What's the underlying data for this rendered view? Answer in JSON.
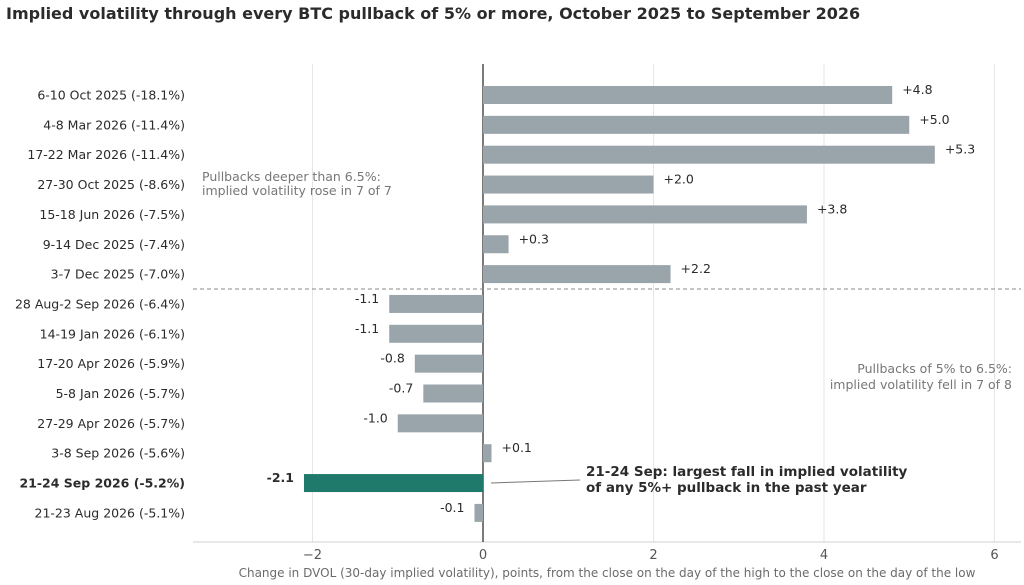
{
  "chart_data": {
    "type": "bar",
    "orientation": "horizontal",
    "title": "Implied volatility through every BTC pullback of 5% or more, October 2025 to September 2026",
    "xlabel": "Change in DVOL (30-day implied volatility), points, from the close on the day of the high to the close on the day of the low",
    "xlim": [
      -3.4,
      6.3
    ],
    "xticks": [
      -2,
      0,
      2,
      4,
      6
    ],
    "xtick_labels": [
      "−2",
      "0",
      "2",
      "4",
      "6"
    ],
    "grid": "vertical",
    "categories": [
      "6-10 Oct 2025  (-18.1%)",
      "4-8 Mar 2026  (-11.4%)",
      "17-22 Mar 2026  (-11.4%)",
      "27-30 Oct 2025  (-8.6%)",
      "15-18 Jun 2026  (-7.5%)",
      "9-14 Dec 2025  (-7.4%)",
      "3-7 Dec 2025  (-7.0%)",
      "28 Aug-2 Sep 2026  (-6.4%)",
      "14-19 Jan 2026  (-6.1%)",
      "17-20 Apr 2026  (-5.9%)",
      "5-8 Jan 2026  (-5.7%)",
      "27-29 Apr 2026  (-5.7%)",
      "3-8 Sep 2026  (-5.6%)",
      "21-24 Sep 2026  (-5.2%)",
      "21-23 Aug 2026  (-5.1%)"
    ],
    "values": [
      4.8,
      5.0,
      5.3,
      2.0,
      3.8,
      0.3,
      2.2,
      -1.1,
      -1.1,
      -0.8,
      -0.7,
      -1.0,
      0.1,
      -2.1,
      -0.1
    ],
    "value_labels": [
      "+4.8",
      "+5.0",
      "+5.3",
      "+2.0",
      "+3.8",
      "+0.3",
      "+2.2",
      "-1.1",
      "-1.1",
      "-0.8",
      "-0.7",
      "-1.0",
      "+0.1",
      "-2.1",
      "-0.1"
    ],
    "highlight_index": 13,
    "colors": {
      "bar": "#9aa5ab",
      "highlight": "#1f7a6c",
      "grid": "#e6e6e6",
      "axis": "#222222",
      "divider": "#888888"
    },
    "divider_after_index": 6,
    "annotations": {
      "deep": [
        "Pullbacks deeper than 6.5%:",
        "implied volatility rose in 7 of 7"
      ],
      "shallow": [
        "Pullbacks of 5% to 6.5%:",
        "implied volatility fell in 7 of 8"
      ],
      "highlight": [
        "21-24 Sep: largest fall in implied volatility",
        "of any 5%+ pullback in the past year"
      ]
    }
  }
}
